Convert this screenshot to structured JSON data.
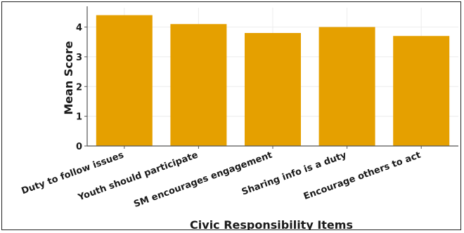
{
  "chart_data": {
    "type": "bar",
    "title": "",
    "xlabel": "Civic Responsibility Items",
    "ylabel": "Mean Score",
    "categories": [
      "Duty to follow issues",
      "Youth should participate",
      "SM encourages engagement",
      "Sharing info is a duty",
      "Encourage others to act"
    ],
    "values": [
      4.4,
      4.1,
      3.8,
      4.0,
      3.7
    ],
    "ylim": [
      0,
      4.65
    ],
    "yticks": [
      0,
      1,
      2,
      3,
      4
    ],
    "grid": true,
    "bar_color": "#E5A000"
  }
}
